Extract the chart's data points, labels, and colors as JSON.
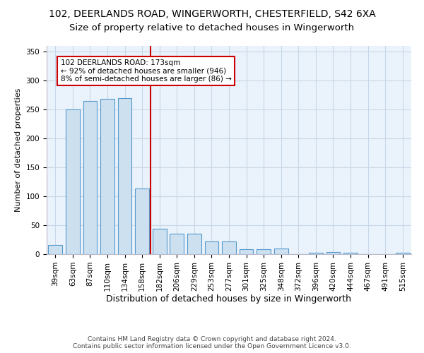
{
  "title1": "102, DEERLANDS ROAD, WINGERWORTH, CHESTERFIELD, S42 6XA",
  "title2": "Size of property relative to detached houses in Wingerworth",
  "xlabel": "Distribution of detached houses by size in Wingerworth",
  "ylabel": "Number of detached properties",
  "categories": [
    "39sqm",
    "63sqm",
    "87sqm",
    "110sqm",
    "134sqm",
    "158sqm",
    "182sqm",
    "206sqm",
    "229sqm",
    "253sqm",
    "277sqm",
    "301sqm",
    "325sqm",
    "348sqm",
    "372sqm",
    "396sqm",
    "420sqm",
    "444sqm",
    "467sqm",
    "491sqm",
    "515sqm"
  ],
  "values": [
    16,
    250,
    265,
    268,
    270,
    114,
    44,
    35,
    35,
    22,
    22,
    8,
    8,
    10,
    0,
    3,
    4,
    3,
    0,
    0,
    2
  ],
  "bar_color": "#cce0f0",
  "bar_edge_color": "#5599cc",
  "vline_x": 5.5,
  "vline_color": "#cc0000",
  "annotation_box_text": "102 DEERLANDS ROAD: 173sqm\n← 92% of detached houses are smaller (946)\n8% of semi-detached houses are larger (86) →",
  "ylim": [
    0,
    360
  ],
  "yticks": [
    0,
    50,
    100,
    150,
    200,
    250,
    300,
    350
  ],
  "bg_color": "#eaf2fb",
  "grid_color": "#c8d8e8",
  "footer": "Contains HM Land Registry data © Crown copyright and database right 2024.\nContains public sector information licensed under the Open Government Licence v3.0.",
  "title1_fontsize": 10,
  "title2_fontsize": 9.5,
  "xlabel_fontsize": 9,
  "ylabel_fontsize": 8,
  "tick_fontsize": 7.5,
  "footer_fontsize": 6.5,
  "bar_width": 0.8
}
